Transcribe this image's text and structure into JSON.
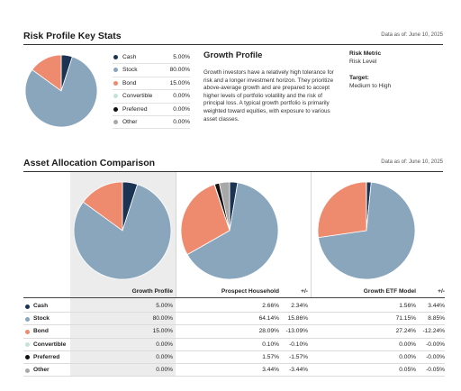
{
  "key_stats": {
    "title": "Risk Profile Key Stats",
    "as_of": "Data as of: June 10, 2025"
  },
  "legend": [
    {
      "label": "Cash",
      "value": "5.00%",
      "color": "#1c3453"
    },
    {
      "label": "Stock",
      "value": "80.00%",
      "color": "#8aa6bd"
    },
    {
      "label": "Bond",
      "value": "15.00%",
      "color": "#ee8a6e"
    },
    {
      "label": "Convertible",
      "value": "0.00%",
      "color": "#c4e2da"
    },
    {
      "label": "Preferred",
      "value": "0.00%",
      "color": "#111111"
    },
    {
      "label": "Other",
      "value": "0.00%",
      "color": "#a8a8a8"
    }
  ],
  "profile": {
    "title": "Growth Profile",
    "description": "Growth investors have a relatively high tolerance for risk and a longer investment horizon. They prioritize above-average growth and are prepared to accept higher levels of portfolio volatility and the risk of principal loss. A typical growth portfolio is primarily weighted toward equities, with exposure to various asset classes."
  },
  "risk": {
    "metric_label": "Risk Metric",
    "metric_value": "Risk Level",
    "target_label": "Target:",
    "target_value": "Medium to High"
  },
  "comparison": {
    "title": "Asset Allocation Comparison",
    "as_of": "Data as of: June 10, 2025",
    "headers": {
      "growth": "Growth Profile",
      "household": "Prospect Household",
      "diff1": "+/-",
      "etf": "Growth ETF Model",
      "diff2": "+/-"
    },
    "rows": [
      {
        "label": "Cash",
        "growth": "5.00%",
        "household": "2.66%",
        "diff1": "2.34%",
        "etf": "1.56%",
        "diff2": "3.44%"
      },
      {
        "label": "Stock",
        "growth": "80.00%",
        "household": "64.14%",
        "diff1": "15.86%",
        "etf": "71.15%",
        "diff2": "8.85%"
      },
      {
        "label": "Bond",
        "growth": "15.00%",
        "household": "28.09%",
        "diff1": "-13.09%",
        "etf": "27.24%",
        "diff2": "-12.24%"
      },
      {
        "label": "Convertible",
        "growth": "0.00%",
        "household": "0.10%",
        "diff1": "-0.10%",
        "etf": "0.00%",
        "diff2": "-0.00%"
      },
      {
        "label": "Preferred",
        "growth": "0.00%",
        "household": "1.57%",
        "diff1": "-1.57%",
        "etf": "0.00%",
        "diff2": "-0.00%"
      },
      {
        "label": "Other",
        "growth": "0.00%",
        "household": "3.44%",
        "diff1": "-3.44%",
        "etf": "0.05%",
        "diff2": "-0.05%"
      }
    ]
  },
  "chart_data": [
    {
      "type": "pie",
      "name": "Growth Profile (key stats)",
      "categories": [
        "Cash",
        "Stock",
        "Bond",
        "Convertible",
        "Preferred",
        "Other"
      ],
      "values": [
        5.0,
        80.0,
        15.0,
        0.0,
        0.0,
        0.0
      ]
    },
    {
      "type": "pie",
      "name": "Growth Profile",
      "categories": [
        "Cash",
        "Stock",
        "Bond",
        "Convertible",
        "Preferred",
        "Other"
      ],
      "values": [
        5.0,
        80.0,
        15.0,
        0.0,
        0.0,
        0.0
      ]
    },
    {
      "type": "pie",
      "name": "Prospect Household",
      "categories": [
        "Cash",
        "Stock",
        "Bond",
        "Convertible",
        "Preferred",
        "Other"
      ],
      "values": [
        2.66,
        64.14,
        28.09,
        0.1,
        1.57,
        3.44
      ]
    },
    {
      "type": "pie",
      "name": "Growth ETF Model",
      "categories": [
        "Cash",
        "Stock",
        "Bond",
        "Convertible",
        "Preferred",
        "Other"
      ],
      "values": [
        1.56,
        71.15,
        27.24,
        0.0,
        0.0,
        0.05
      ]
    }
  ]
}
